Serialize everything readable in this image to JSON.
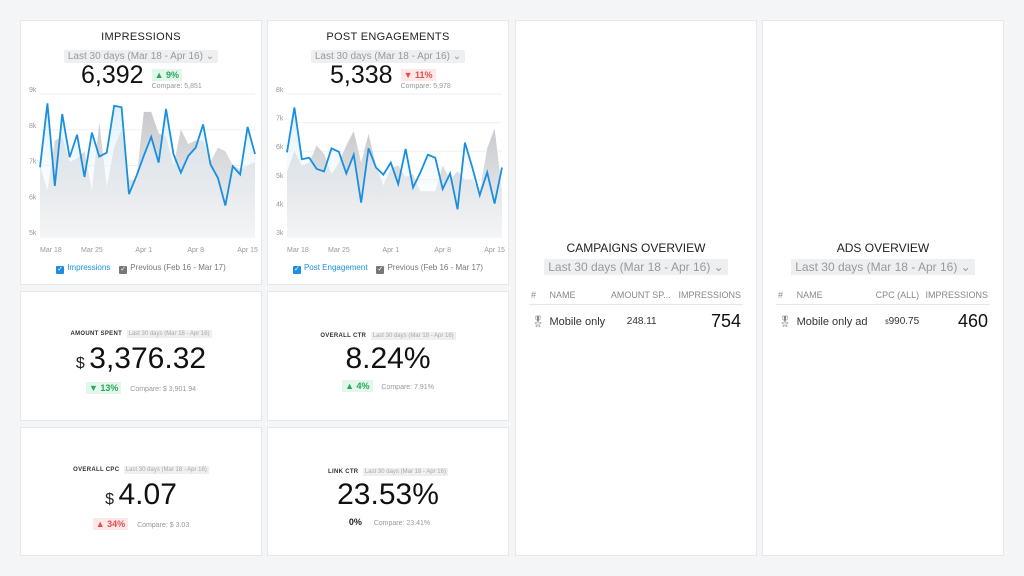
{
  "impressions": {
    "title": "IMPRESSIONS",
    "range": "Last 30 days (Mar 18 - Apr 16)",
    "value": "6,392",
    "change": "▲ 9%",
    "compare": "Compare: 5,851",
    "legend_current": "Impressions",
    "legend_previous": "Previous (Feb 16 - Mar 17)"
  },
  "engagements": {
    "title": "POST ENGAGEMENTS",
    "range": "Last 30 days (Mar 18 - Apr 16)",
    "value": "5,338",
    "change": "▼ 11%",
    "compare": "Compare: 5,978",
    "legend_current": "Post Engagement",
    "legend_previous": "Previous (Feb 16 - Mar 17)"
  },
  "amount_spent": {
    "title": "AMOUNT SPENT",
    "range": "Last 30 days (Mar 18 - Apr 16)",
    "currency": "$",
    "value": "3,376.32",
    "change": "▼ 13%",
    "compare": "Compare: $ 3,901.94"
  },
  "overall_ctr": {
    "title": "OVERALL CTR",
    "range": "Last 30 days (Mar 18 - Apr 16)",
    "value": "8.24%",
    "change": "▲ 4%",
    "compare": "Compare: 7.91%"
  },
  "overall_cpc": {
    "title": "OVERALL CPC",
    "range": "Last 30 days (Mar 18 - Apr 16)",
    "currency": "$",
    "value": "4.07",
    "change": "▲ 34%",
    "compare": "Compare: $ 3.03"
  },
  "link_ctr": {
    "title": "LINK CTR",
    "range": "Last 30 days (Mar 18 - Apr 16)",
    "value": "23.53%",
    "change": "0%",
    "compare": "Compare: 23.41%"
  },
  "campaigns": {
    "title": "CAMPAIGNS OVERVIEW",
    "range": "Last 30 days (Mar 18 - Apr 16)",
    "columns": [
      "#",
      "NAME",
      "AMOUNT SP...",
      "IMPRESSIONS"
    ],
    "rows": [
      {
        "icon": "medal-icon",
        "name": "Mobile only",
        "amount": "248.11",
        "impressions": "754"
      }
    ]
  },
  "ads": {
    "title": "ADS OVERVIEW",
    "range": "Last 30 days (Mar 18 - Apr 16)",
    "columns": [
      "#",
      "NAME",
      "CPC (ALL)",
      "IMPRESSIONS"
    ],
    "rows": [
      {
        "icon": "medal-icon",
        "name": "Mobile only ad",
        "currency": "$",
        "cpc": "990.75",
        "impressions": "460"
      }
    ]
  },
  "colors": {
    "current": "#1a8fe0",
    "previous": "#cfd0d3",
    "up": "#27a85a",
    "down": "#e0504e"
  },
  "chart_data": [
    {
      "type": "area",
      "ylim": [
        5000,
        9000
      ],
      "yticks": [
        "5k",
        "6k",
        "7k",
        "8k",
        "9k"
      ],
      "xticks": [
        "Mar 18",
        "Mar 25",
        "Apr 1",
        "Apr 8",
        "Apr 15"
      ],
      "series": [
        {
          "name": "Impressions",
          "values": [
            6950,
            8740,
            6430,
            8440,
            7230,
            7860,
            6680,
            7920,
            7250,
            7360,
            8670,
            8630,
            6200,
            6700,
            7270,
            7800,
            7080,
            8580,
            7320,
            6800,
            7270,
            7500,
            8150,
            7030,
            6650,
            5880,
            6980,
            6750,
            8080,
            7320
          ]
        },
        {
          "name": "Previous (Feb 16 - Mar 17)",
          "values": [
            7000,
            6300,
            7700,
            7800,
            7100,
            7200,
            7400,
            6300,
            8200,
            6400,
            7500,
            8000,
            6600,
            6600,
            8500,
            8500,
            7900,
            7800,
            7000,
            8000,
            7600,
            7700,
            7700,
            7100,
            7500,
            7400,
            7000,
            6900,
            7000,
            7100
          ]
        }
      ]
    },
    {
      "type": "area",
      "ylim": [
        3000,
        8000
      ],
      "yticks": [
        "3k",
        "4k",
        "5k",
        "6k",
        "7k",
        "8k"
      ],
      "xticks": [
        "Mar 18",
        "Mar 25",
        "Apr 1",
        "Apr 8",
        "Apr 15"
      ],
      "series": [
        {
          "name": "Post Engagement",
          "values": [
            5960,
            7530,
            5720,
            5770,
            5380,
            5290,
            6100,
            5980,
            5220,
            5880,
            4200,
            6100,
            5430,
            5180,
            5600,
            4850,
            6080,
            4730,
            5260,
            5880,
            5770,
            4680,
            5220,
            3970,
            6300,
            5430,
            4460,
            5260,
            4170,
            5430
          ]
        },
        {
          "name": "Previous (Feb 16 - Mar 17)",
          "values": [
            5300,
            6000,
            5500,
            5600,
            6200,
            5900,
            5200,
            5600,
            6200,
            6700,
            5600,
            6600,
            5500,
            4800,
            5400,
            5500,
            5100,
            5200,
            4600,
            4600,
            4600,
            5500,
            5000,
            5300,
            5000,
            5000,
            4600,
            6100,
            6800,
            4600
          ]
        }
      ]
    }
  ]
}
